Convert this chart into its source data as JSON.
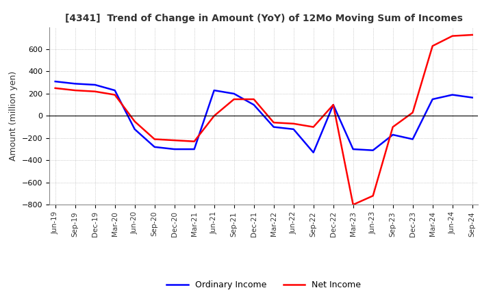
{
  "title": "[4341]  Trend of Change in Amount (YoY) of 12Mo Moving Sum of Incomes",
  "ylabel": "Amount (million yen)",
  "ylim": [
    -800,
    800
  ],
  "yticks": [
    -800,
    -600,
    -400,
    -200,
    0,
    200,
    400,
    600
  ],
  "legend_labels": [
    "Ordinary Income",
    "Net Income"
  ],
  "line_colors": [
    "#0000ff",
    "#ff0000"
  ],
  "dates": [
    "Jun-19",
    "Sep-19",
    "Dec-19",
    "Mar-20",
    "Jun-20",
    "Sep-20",
    "Dec-20",
    "Mar-21",
    "Jun-21",
    "Sep-21",
    "Dec-21",
    "Mar-22",
    "Jun-22",
    "Sep-22",
    "Dec-22",
    "Mar-23",
    "Jun-23",
    "Sep-23",
    "Dec-23",
    "Mar-24",
    "Jun-24",
    "Sep-24"
  ],
  "ordinary_income": [
    310,
    290,
    280,
    230,
    -120,
    -280,
    -300,
    -300,
    230,
    200,
    100,
    -100,
    -120,
    -330,
    100,
    -300,
    -310,
    -170,
    -210,
    150,
    190,
    165
  ],
  "net_income": [
    250,
    230,
    220,
    190,
    -50,
    -210,
    -220,
    -230,
    0,
    150,
    150,
    -60,
    -70,
    -100,
    100,
    -800,
    -720,
    -100,
    30,
    630,
    720,
    730
  ],
  "background_color": "#ffffff",
  "grid_color": "#aaaaaa"
}
